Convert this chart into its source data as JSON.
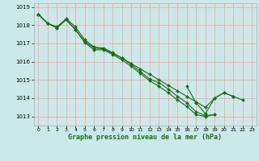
{
  "title": "Graphe pression niveau de la mer (hPa)",
  "bg_color": "#cce9e9",
  "grid_color": "#ff9999",
  "line_color": "#1a6b1a",
  "marker_color": "#1a6b1a",
  "xlim": [
    -0.5,
    23.5
  ],
  "ylim": [
    1012.5,
    1019.2
  ],
  "yticks": [
    1013,
    1014,
    1015,
    1016,
    1017,
    1018,
    1019
  ],
  "xticks": [
    0,
    1,
    2,
    3,
    4,
    5,
    6,
    7,
    8,
    9,
    10,
    11,
    12,
    13,
    14,
    15,
    16,
    17,
    18,
    19,
    20,
    21,
    22,
    23
  ],
  "series": [
    [
      1018.6,
      1018.1,
      1017.9,
      1018.35,
      1017.9,
      1017.2,
      1016.8,
      1016.75,
      1016.5,
      1016.2,
      1015.9,
      1015.6,
      1015.3,
      1015.0,
      1014.7,
      1014.4,
      1014.1,
      1013.8,
      1013.5,
      1014.0,
      1014.3,
      1014.1,
      null,
      null
    ],
    [
      1018.6,
      1018.1,
      1017.85,
      1018.3,
      1017.75,
      1017.1,
      1016.75,
      1016.7,
      1016.45,
      1016.2,
      1015.85,
      1015.45,
      1015.05,
      1014.85,
      1014.5,
      1014.1,
      1013.75,
      1013.25,
      1013.05,
      1013.1,
      null,
      null,
      null,
      null
    ],
    [
      1018.6,
      1018.1,
      1017.85,
      1018.3,
      1017.75,
      1017.05,
      1016.65,
      1016.65,
      1016.4,
      1016.1,
      1015.75,
      1015.35,
      1014.95,
      1014.65,
      1014.3,
      1013.9,
      1013.55,
      1013.1,
      1013.0,
      1013.1,
      null,
      null,
      null,
      null
    ],
    [
      null,
      null,
      null,
      null,
      null,
      null,
      null,
      null,
      null,
      null,
      null,
      null,
      null,
      null,
      null,
      null,
      1014.65,
      1013.75,
      1013.15,
      1014.0,
      1014.3,
      1014.1,
      1013.9,
      null
    ]
  ]
}
